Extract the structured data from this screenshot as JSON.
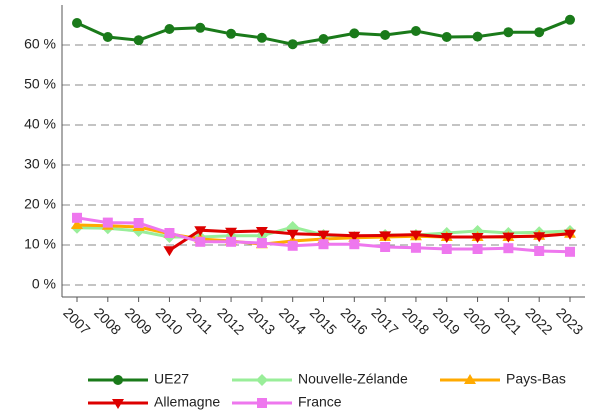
{
  "chart_data": {
    "type": "line",
    "categories": [
      "2007",
      "2008",
      "2009",
      "2010",
      "2011",
      "2012",
      "2013",
      "2014",
      "2015",
      "2016",
      "2017",
      "2018",
      "2019",
      "2020",
      "2021",
      "2022",
      "2023"
    ],
    "ylim": [
      -3,
      70
    ],
    "yticks": [
      {
        "value": 0,
        "label": "0 %"
      },
      {
        "value": 10,
        "label": "10 %"
      },
      {
        "value": 20,
        "label": "20 %"
      },
      {
        "value": 30,
        "label": "30 %"
      },
      {
        "value": 40,
        "label": "40 %"
      },
      {
        "value": 50,
        "label": "50 %"
      },
      {
        "value": 60,
        "label": "60 %"
      }
    ],
    "grid": true,
    "series": [
      {
        "name": "UE27",
        "color": "#1a7a1a",
        "marker": "circle",
        "values": [
          65.5,
          62,
          61.2,
          64,
          64.3,
          62.8,
          61.8,
          60.2,
          61.5,
          62.9,
          62.5,
          63.5,
          62,
          62.1,
          63.2,
          63.2,
          66.3
        ]
      },
      {
        "name": "Nouvelle-Zélande",
        "color": "#99ee99",
        "marker": "diamond",
        "values": [
          14.3,
          14.2,
          13.5,
          12,
          12,
          12.3,
          12.3,
          14.5,
          12.5,
          12,
          12.5,
          12.5,
          13,
          13.5,
          13,
          13.2,
          13.5
        ]
      },
      {
        "name": "Pays-Bas",
        "color": "#ffaa00",
        "marker": "triangle-up",
        "values": [
          15,
          14.8,
          14.5,
          12.8,
          11.5,
          11,
          10.2,
          11,
          11.5,
          11.8,
          12,
          12.2,
          12,
          12,
          12,
          12.3,
          12.8
        ]
      },
      {
        "name": "Allemagne",
        "color": "#dd0000",
        "marker": "triangle-down",
        "values": [
          null,
          null,
          null,
          8.7,
          13.7,
          13.3,
          13.5,
          12.8,
          12.6,
          12.3,
          12.4,
          12.6,
          12,
          12,
          12.1,
          12.2,
          12.8
        ]
      },
      {
        "name": "France",
        "color": "#ee77ee",
        "marker": "square",
        "values": [
          16.8,
          15.6,
          15.5,
          13,
          10.8,
          10.8,
          10.5,
          9.8,
          10.2,
          10.2,
          9.5,
          9.3,
          9,
          9,
          9.2,
          8.5,
          8.3
        ]
      }
    ]
  }
}
